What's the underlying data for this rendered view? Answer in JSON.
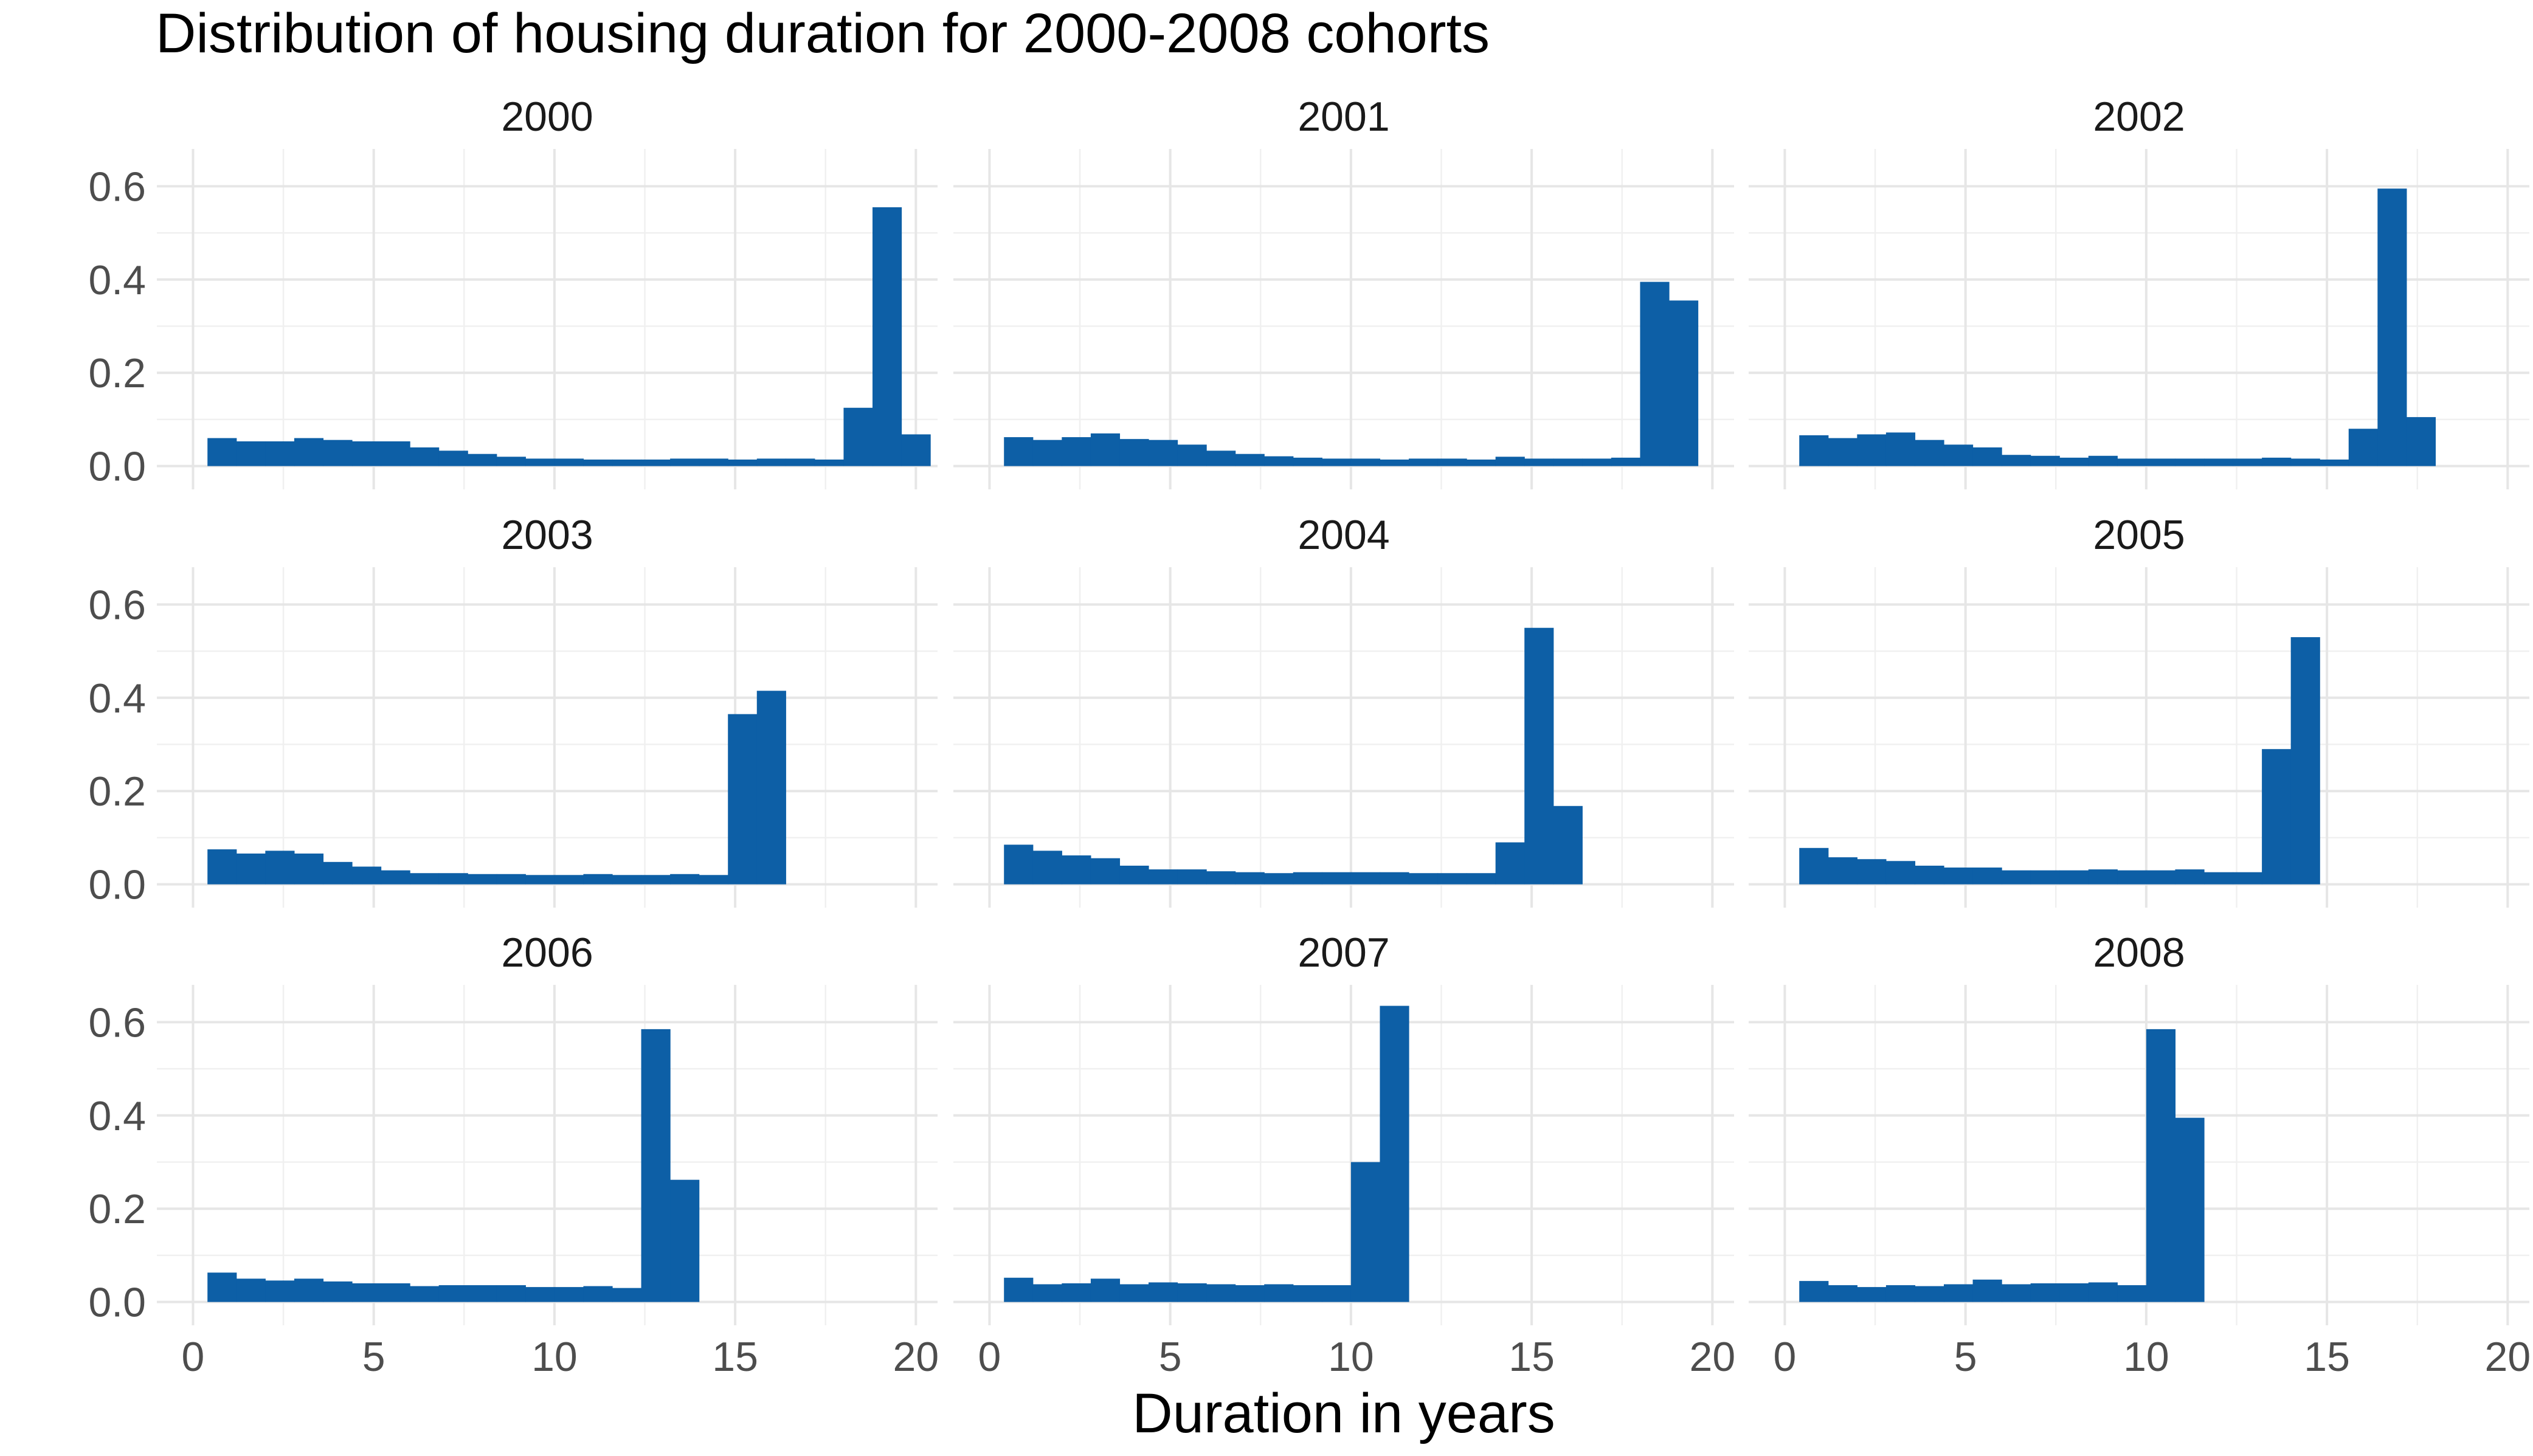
{
  "chart_data": {
    "type": "bar",
    "title": "Distribution of housing duration for 2000-2008 cohorts",
    "xlabel": "Duration in years",
    "ylabel": "",
    "bar_color": "#0D5FA6",
    "background": "#ffffff",
    "grid": true,
    "bin_width": 0.8,
    "xlim": [
      0,
      20
    ],
    "ylim": [
      0,
      0.63
    ],
    "x_ticks": [
      0,
      5,
      10,
      15,
      20
    ],
    "x_tick_labels": [
      "0",
      "5",
      "10",
      "15",
      "20"
    ],
    "y_ticks": [
      0.0,
      0.2,
      0.4,
      0.6
    ],
    "y_tick_labels": [
      "0.0",
      "0.2",
      "0.4",
      "0.6"
    ],
    "panels": [
      {
        "label": "2000",
        "x_start": 0.4,
        "values": [
          0.06,
          0.053,
          0.053,
          0.06,
          0.056,
          0.053,
          0.053,
          0.04,
          0.033,
          0.026,
          0.02,
          0.016,
          0.016,
          0.014,
          0.014,
          0.014,
          0.016,
          0.016,
          0.014,
          0.016,
          0.016,
          0.014,
          0.125,
          0.555,
          0.068
        ]
      },
      {
        "label": "2001",
        "x_start": 0.4,
        "values": [
          0.062,
          0.056,
          0.062,
          0.07,
          0.058,
          0.056,
          0.046,
          0.033,
          0.026,
          0.021,
          0.018,
          0.016,
          0.016,
          0.014,
          0.016,
          0.016,
          0.014,
          0.02,
          0.016,
          0.016,
          0.016,
          0.018,
          0.395,
          0.355
        ]
      },
      {
        "label": "2002",
        "x_start": 0.4,
        "values": [
          0.066,
          0.06,
          0.068,
          0.072,
          0.056,
          0.046,
          0.04,
          0.024,
          0.022,
          0.018,
          0.022,
          0.016,
          0.016,
          0.016,
          0.016,
          0.016,
          0.018,
          0.016,
          0.014,
          0.08,
          0.595,
          0.105
        ]
      },
      {
        "label": "2003",
        "x_start": 0.4,
        "values": [
          0.075,
          0.066,
          0.072,
          0.066,
          0.048,
          0.038,
          0.03,
          0.024,
          0.024,
          0.022,
          0.022,
          0.02,
          0.02,
          0.022,
          0.02,
          0.02,
          0.022,
          0.02,
          0.365,
          0.415
        ]
      },
      {
        "label": "2004",
        "x_start": 0.4,
        "values": [
          0.085,
          0.072,
          0.062,
          0.056,
          0.04,
          0.032,
          0.032,
          0.028,
          0.026,
          0.024,
          0.026,
          0.026,
          0.026,
          0.026,
          0.024,
          0.024,
          0.024,
          0.09,
          0.55,
          0.168
        ]
      },
      {
        "label": "2005",
        "x_start": 0.4,
        "values": [
          0.078,
          0.058,
          0.054,
          0.05,
          0.04,
          0.036,
          0.036,
          0.03,
          0.03,
          0.03,
          0.032,
          0.03,
          0.03,
          0.032,
          0.026,
          0.026,
          0.29,
          0.53
        ]
      },
      {
        "label": "2006",
        "x_start": 0.4,
        "values": [
          0.063,
          0.05,
          0.046,
          0.05,
          0.044,
          0.04,
          0.04,
          0.034,
          0.036,
          0.036,
          0.036,
          0.032,
          0.032,
          0.034,
          0.03,
          0.585,
          0.262
        ]
      },
      {
        "label": "2007",
        "x_start": 0.4,
        "values": [
          0.052,
          0.038,
          0.04,
          0.05,
          0.038,
          0.042,
          0.04,
          0.038,
          0.036,
          0.038,
          0.036,
          0.036,
          0.3,
          0.635
        ]
      },
      {
        "label": "2008",
        "x_start": 0.4,
        "values": [
          0.045,
          0.036,
          0.032,
          0.036,
          0.034,
          0.038,
          0.048,
          0.038,
          0.04,
          0.04,
          0.042,
          0.036,
          0.585,
          0.395
        ]
      }
    ]
  }
}
